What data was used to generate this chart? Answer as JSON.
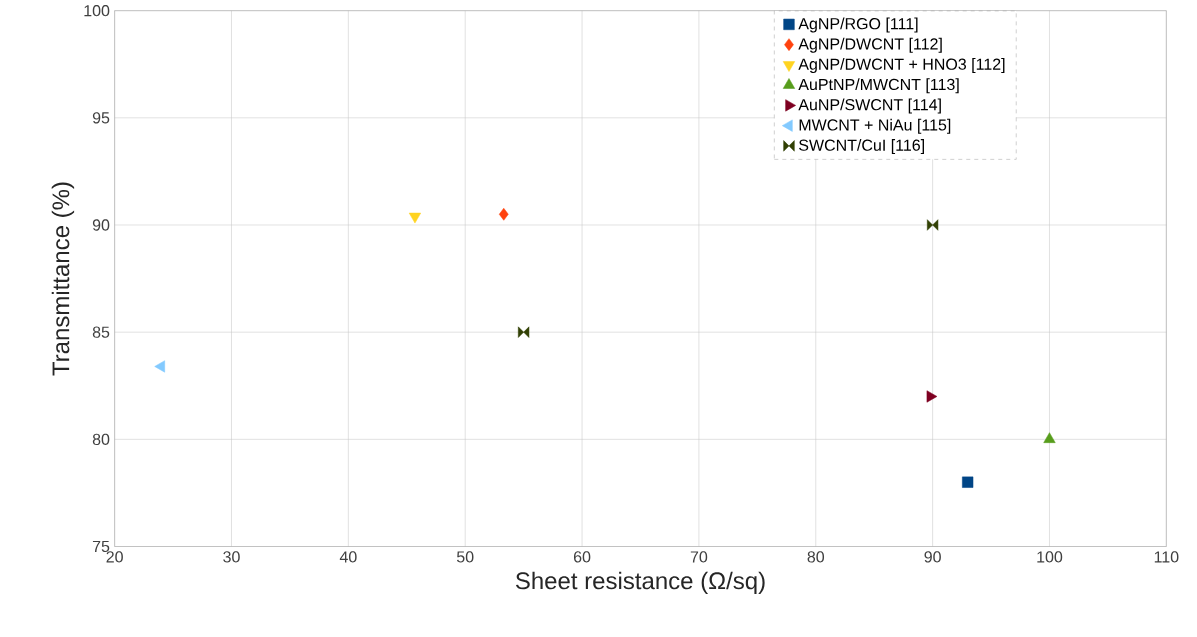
{
  "chart_data": {
    "type": "scatter",
    "xlabel": "Sheet resistance (Ω/sq)",
    "ylabel": "Transmittance (%)",
    "xlim": [
      20,
      110
    ],
    "xticks": [
      20,
      30,
      40,
      50,
      60,
      70,
      80,
      90,
      100,
      110
    ],
    "ylim": [
      75,
      100
    ],
    "yticks": [
      75,
      80,
      85,
      90,
      95,
      100
    ],
    "grid": true,
    "legend": "top right",
    "series": [
      {
        "name": "AgNP/RGO [111]",
        "color": "#004586",
        "marker": "square",
        "x": [
          93
        ],
        "values": [
          78
        ]
      },
      {
        "name": "AgNP/DWCNT [112]",
        "color": "#ff420e",
        "marker": "diamond",
        "x": [
          53.3
        ],
        "values": [
          90.5
        ]
      },
      {
        "name": "AgNP/DWCNT + HNO3 [112]",
        "color": "#ffd320",
        "marker": "triangle-down",
        "x": [
          45.7
        ],
        "values": [
          90.4
        ]
      },
      {
        "name": "AuPtNP/MWCNT [113]",
        "color": "#579d1c",
        "marker": "triangle",
        "x": [
          100
        ],
        "values": [
          80
        ]
      },
      {
        "name": "AuNP/SWCNT [114]",
        "color": "#7e0021",
        "marker": "triangle-right",
        "x": [
          89.8
        ],
        "values": [
          82
        ]
      },
      {
        "name": "MWCNT + NiAu [115]",
        "color": "#83caff",
        "marker": "triangle-left",
        "x": [
          24
        ],
        "values": [
          83.4
        ]
      },
      {
        "name": "SWCNT/CuI [116]",
        "color": "#314004",
        "x": [
          90,
          55
        ],
        "values": [
          90,
          85
        ]
      }
    ]
  }
}
